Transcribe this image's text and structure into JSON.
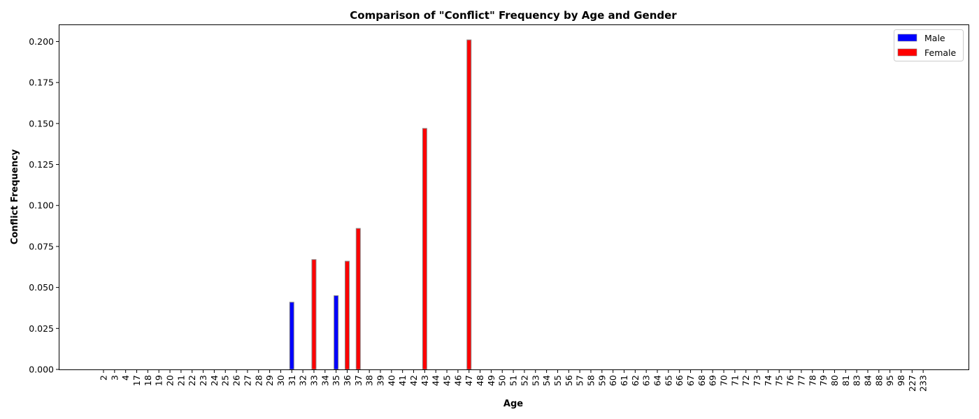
{
  "chart_data": {
    "type": "bar",
    "title": "Comparison of \"Conflict\" Frequency by Age and Gender",
    "xlabel": "Age",
    "ylabel": "Conflict Frequency",
    "ylim": [
      0,
      0.21
    ],
    "yticks": [
      "0.000",
      "0.025",
      "0.050",
      "0.075",
      "0.100",
      "0.125",
      "0.150",
      "0.175",
      "0.200"
    ],
    "legend_position": "top-right",
    "categories": [
      "2",
      "3",
      "4",
      "17",
      "18",
      "19",
      "20",
      "21",
      "22",
      "23",
      "24",
      "25",
      "26",
      "27",
      "28",
      "29",
      "30",
      "31",
      "32",
      "33",
      "34",
      "35",
      "36",
      "37",
      "38",
      "39",
      "40",
      "41",
      "42",
      "43",
      "44",
      "45",
      "46",
      "47",
      "48",
      "49",
      "50",
      "51",
      "52",
      "53",
      "54",
      "55",
      "56",
      "57",
      "58",
      "59",
      "60",
      "61",
      "62",
      "63",
      "64",
      "65",
      "66",
      "67",
      "68",
      "69",
      "70",
      "71",
      "72",
      "73",
      "74",
      "75",
      "76",
      "77",
      "78",
      "79",
      "80",
      "81",
      "83",
      "84",
      "88",
      "95",
      "98",
      "227",
      "233"
    ],
    "series": [
      {
        "name": "Male",
        "color": "#0000ff",
        "values": [
          0,
          0,
          0,
          0,
          0,
          0,
          0,
          0,
          0,
          0,
          0,
          0,
          0,
          0,
          0,
          0,
          0,
          0.041,
          0,
          0,
          0,
          0.045,
          0,
          0,
          0,
          0,
          0,
          0,
          0,
          0,
          0,
          0,
          0,
          0,
          0,
          0,
          0,
          0,
          0,
          0,
          0,
          0,
          0,
          0,
          0,
          0,
          0,
          0,
          0,
          0,
          0,
          0,
          0,
          0,
          0,
          0,
          0,
          0,
          0,
          0,
          0,
          0,
          0,
          0,
          0,
          0,
          0,
          0,
          0,
          0,
          0,
          0,
          0,
          0,
          0
        ]
      },
      {
        "name": "Female",
        "color": "#ff0000",
        "values": [
          0,
          0,
          0,
          0,
          0,
          0,
          0,
          0,
          0,
          0,
          0,
          0,
          0,
          0,
          0,
          0,
          0,
          0,
          0,
          0.067,
          0,
          0,
          0.066,
          0.086,
          0,
          0,
          0,
          0,
          0,
          0.147,
          0,
          0,
          0,
          0.201,
          0,
          0,
          0,
          0,
          0,
          0,
          0,
          0,
          0,
          0,
          0,
          0,
          0,
          0,
          0,
          0,
          0,
          0,
          0,
          0,
          0,
          0,
          0,
          0,
          0,
          0,
          0,
          0,
          0,
          0,
          0,
          0,
          0,
          0,
          0,
          0,
          0,
          0,
          0,
          0,
          0
        ]
      }
    ]
  }
}
